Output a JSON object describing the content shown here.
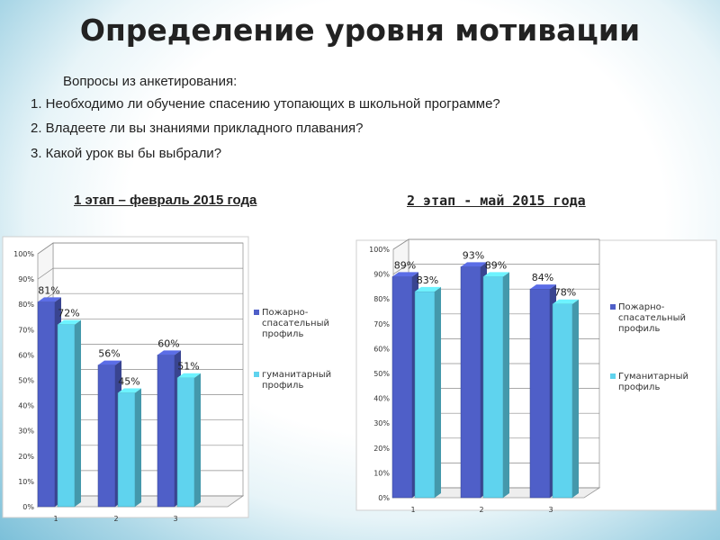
{
  "title": "Определение уровня мотивации",
  "questions": {
    "intro": "Вопросы из анкетирования:",
    "items": [
      "1. Необходимо ли обучение спасению утопающих в школьной программе?",
      "2. Владеете ли вы знаниями прикладного плавания?",
      "3. Какой урок вы бы выбрали?"
    ]
  },
  "stages": [
    "1 этап – февраль 2015 года",
    "2 этап - май 2015 года"
  ],
  "colors": {
    "series1": "#4f5fc8",
    "series2": "#5fd3ee"
  },
  "chart_data": [
    {
      "type": "bar",
      "title": "1 этап – февраль 2015 года",
      "categories": [
        "1",
        "2",
        "3"
      ],
      "series": [
        {
          "name": "Пожарно-спасательный профиль",
          "values": [
            81,
            56,
            60
          ]
        },
        {
          "name": "гуманитарный профиль",
          "values": [
            72,
            45,
            51
          ]
        }
      ],
      "data_labels": [
        [
          "81%",
          "56%",
          "60%"
        ],
        [
          "72%",
          "45%",
          "51%"
        ]
      ],
      "y_ticks": [
        "0%",
        "10%",
        "20%",
        "30%",
        "40%",
        "50%",
        "60%",
        "70%",
        "80%",
        "90%",
        "100%"
      ],
      "ylim": [
        0,
        100
      ],
      "legend_lines": [
        [
          "Пожарно-",
          "спасательный",
          "профиль"
        ],
        [
          "гуманитарный",
          "профиль"
        ]
      ],
      "legend": "right",
      "grid": true
    },
    {
      "type": "bar",
      "title": "2 этап - май 2015 года",
      "categories": [
        "1",
        "2",
        "3"
      ],
      "series": [
        {
          "name": "Пожарно-спасательный профиль",
          "values": [
            89,
            93,
            84
          ]
        },
        {
          "name": "Гуманитарный профиль",
          "values": [
            83,
            89,
            78
          ]
        }
      ],
      "data_labels": [
        [
          "89%",
          "93%",
          "84%"
        ],
        [
          "83%",
          "89%",
          "78%"
        ]
      ],
      "y_ticks": [
        "0%",
        "10%",
        "20%",
        "30%",
        "40%",
        "50%",
        "60%",
        "70%",
        "80%",
        "90%",
        "100%"
      ],
      "ylim": [
        0,
        100
      ],
      "legend_lines": [
        [
          "Пожарно-",
          "спасательный",
          "профиль"
        ],
        [
          "Гуманитарный",
          "профиль"
        ]
      ],
      "legend": "right",
      "grid": true
    }
  ]
}
